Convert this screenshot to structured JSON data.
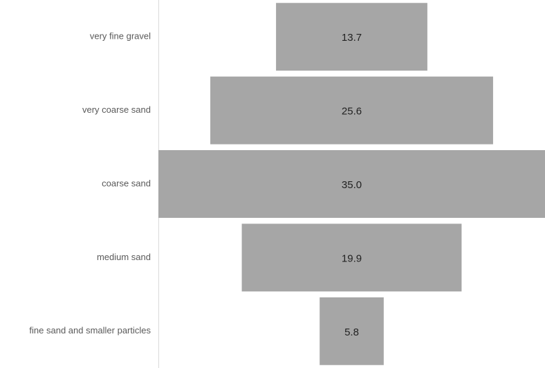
{
  "chart_data": {
    "type": "funnel",
    "categories": [
      "very fine gravel",
      "very coarse sand",
      "coarse sand",
      "medium sand",
      "fine sand and smaller particles"
    ],
    "values": [
      13.7,
      25.6,
      35.0,
      19.9,
      5.8
    ],
    "value_labels": [
      "13.7",
      "25.6",
      "35.0",
      "19.9",
      "5.8"
    ],
    "color": "#a6a6a6"
  }
}
